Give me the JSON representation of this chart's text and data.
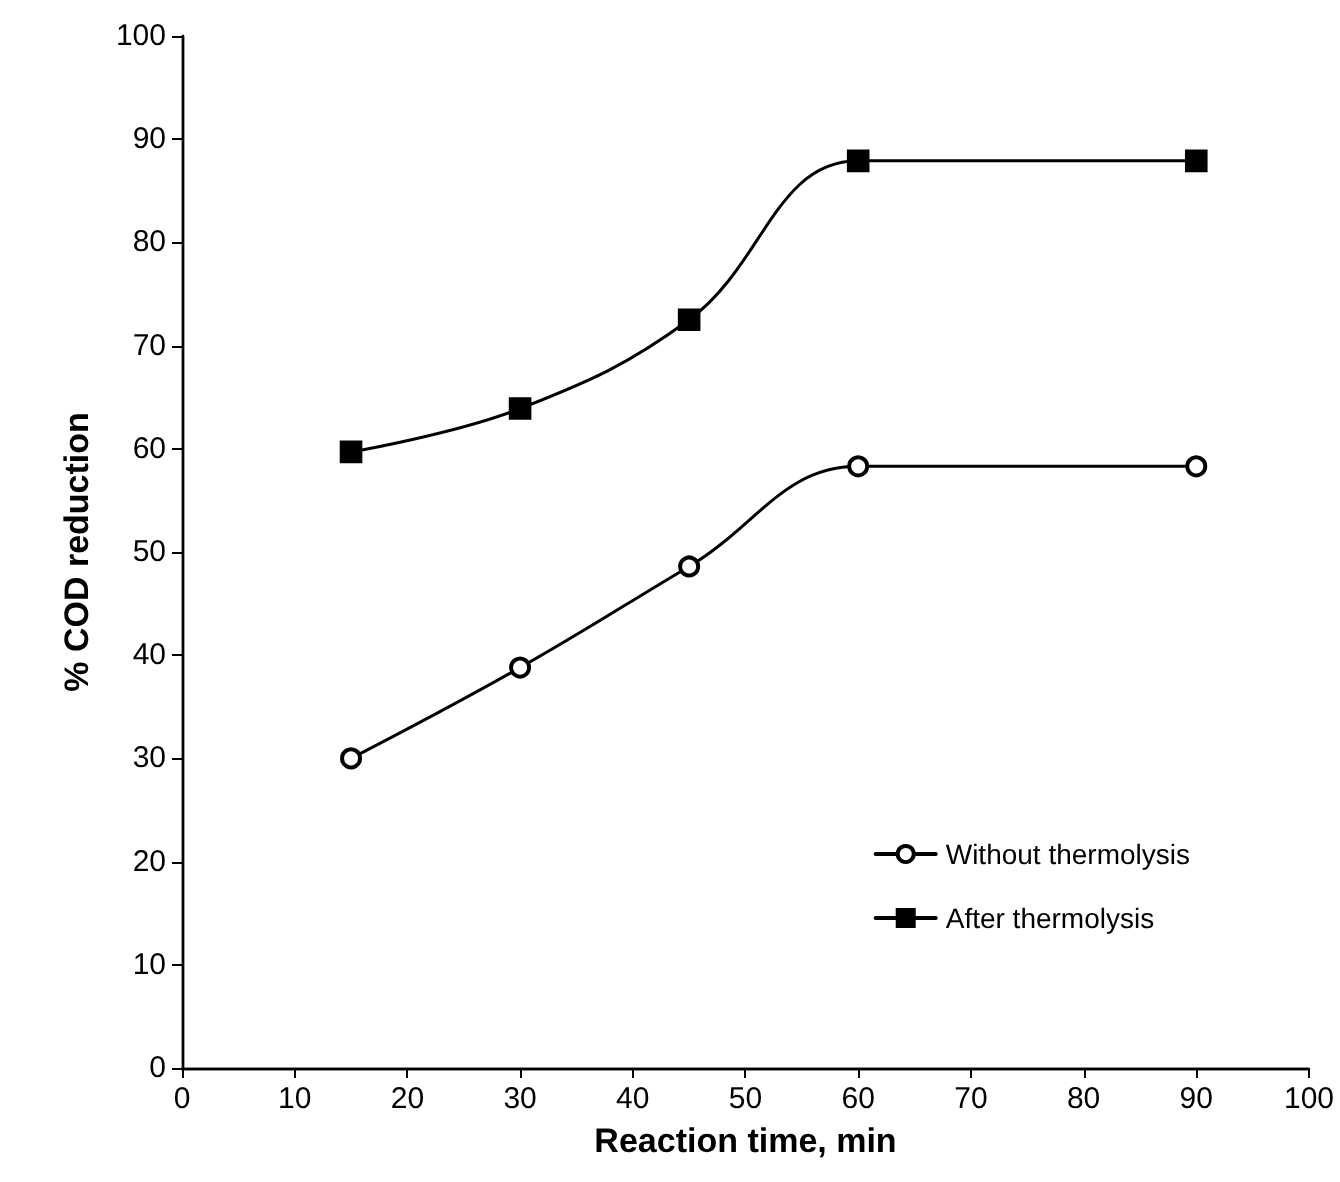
{
  "chart_data": {
    "type": "line",
    "xlabel": "Reaction time, min",
    "ylabel": "% COD reduction",
    "x": [
      15,
      30,
      45,
      60,
      90
    ],
    "series": [
      {
        "name": "Without thermolysis",
        "color": "#000000",
        "marker": "circle",
        "values": [
          30,
          38.8,
          48.6,
          58.3,
          58.3
        ]
      },
      {
        "name": "After thermolysis",
        "color": "#000000",
        "marker": "square",
        "values": [
          59.7,
          63.9,
          72.5,
          87.9,
          87.9
        ]
      }
    ],
    "xlim": [
      0,
      100
    ],
    "xticks": [
      0,
      10,
      20,
      30,
      40,
      50,
      60,
      70,
      80,
      90,
      100
    ],
    "ylim": [
      0,
      100
    ],
    "yticks": [
      0,
      10,
      20,
      30,
      40,
      50,
      60,
      70,
      80,
      90,
      100
    ],
    "grid": false,
    "legend": "bottom right",
    "line_style": "solid"
  }
}
